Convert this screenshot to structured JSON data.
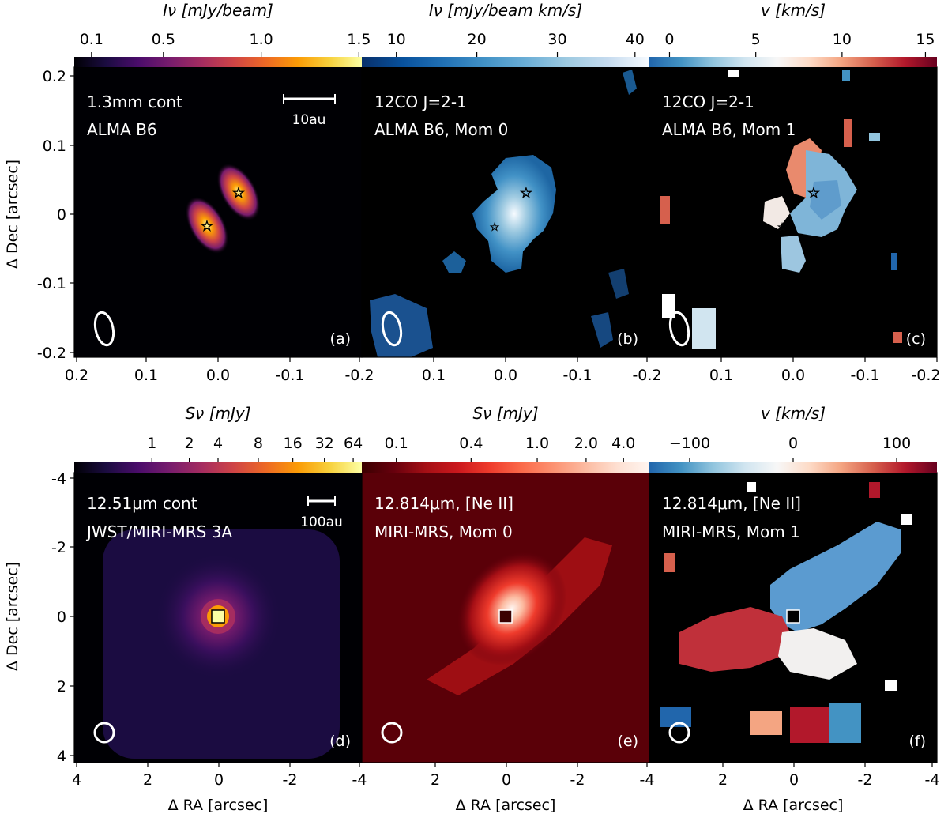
{
  "figure": {
    "ylabel": "Δ Dec [arcsec]",
    "xlabel": "Δ RA [arcsec]",
    "colors": {
      "inferno": [
        "#000004",
        "#1b0c41",
        "#4a0c6b",
        "#781c6d",
        "#a52c60",
        "#cf4446",
        "#ed6925",
        "#fb9b06",
        "#f7d13d",
        "#fcffa4"
      ],
      "blues": [
        "#08306b",
        "#08519c",
        "#2171b5",
        "#4292c6",
        "#6baed6",
        "#9ecae1",
        "#c6dbef",
        "#f7fbff"
      ],
      "rdbu": [
        "#2166ac",
        "#4393c3",
        "#92c5de",
        "#d1e5f0",
        "#f7f7f7",
        "#fddbc7",
        "#f4a582",
        "#d6604d",
        "#b2182b",
        "#67001f"
      ],
      "reds": [
        "#3a0000",
        "#67000d",
        "#a50f15",
        "#cb181d",
        "#ef3b2c",
        "#fb6a4a",
        "#fc9272",
        "#fcbba1",
        "#fee0d2",
        "#fff5f0"
      ]
    }
  },
  "top": {
    "yticks": [
      "0.2",
      "0.1",
      "0",
      "-0.1",
      "-0.2"
    ],
    "xticks": [
      "0.2",
      "0.1",
      "0.0",
      "-0.1",
      "-0.2"
    ],
    "xticks_c": [
      "0.1",
      "0.0",
      "-0.1",
      "-0.2"
    ],
    "panels": [
      {
        "cbar_label": "Iν [mJy/beam]",
        "cbar_ticks": [
          "0.1",
          "0.5",
          "1.0",
          "1.5"
        ],
        "line1": "1.3mm cont",
        "line2": "ALMA B6",
        "letter": "(a)",
        "scalebar_label": "10au"
      },
      {
        "cbar_label": "Iν [mJy/beam km/s]",
        "cbar_ticks": [
          "10",
          "20",
          "30",
          "40"
        ],
        "line1": "12CO J=2-1",
        "line2": "ALMA B6, Mom 0",
        "letter": "(b)"
      },
      {
        "cbar_label": "v [km/s]",
        "cbar_ticks": [
          "0",
          "5",
          "10",
          "15"
        ],
        "line1": "12CO J=2-1",
        "line2": "ALMA B6, Mom 1",
        "letter": "(c)"
      }
    ]
  },
  "bottom": {
    "yticks": [
      "-4",
      "-2",
      "0",
      "2",
      "4"
    ],
    "xticks": [
      "4",
      "2",
      "0",
      "-2",
      "-4"
    ],
    "panels": [
      {
        "cbar_label": "Sν [mJy]",
        "cbar_ticks": [
          "1",
          "2",
          "4",
          "8",
          "16",
          "32",
          "64"
        ],
        "line1": "12.51μm cont",
        "line2": "JWST/MIRI-MRS 3A",
        "letter": "(d)",
        "scalebar_label": "100au"
      },
      {
        "cbar_label": "Sν [mJy]",
        "cbar_ticks": [
          "0.1",
          "0.4",
          "1.0",
          "2.0",
          "4.0"
        ],
        "line1": "12.814μm, [Ne II]",
        "line2": "MIRI-MRS, Mom 0",
        "letter": "(e)"
      },
      {
        "cbar_label": "v [km/s]",
        "cbar_ticks": [
          "−100",
          "0",
          "100"
        ],
        "line1": "12.814μm, [Ne II]",
        "line2": "MIRI-MRS, Mom 1",
        "letter": "(f)"
      }
    ]
  }
}
